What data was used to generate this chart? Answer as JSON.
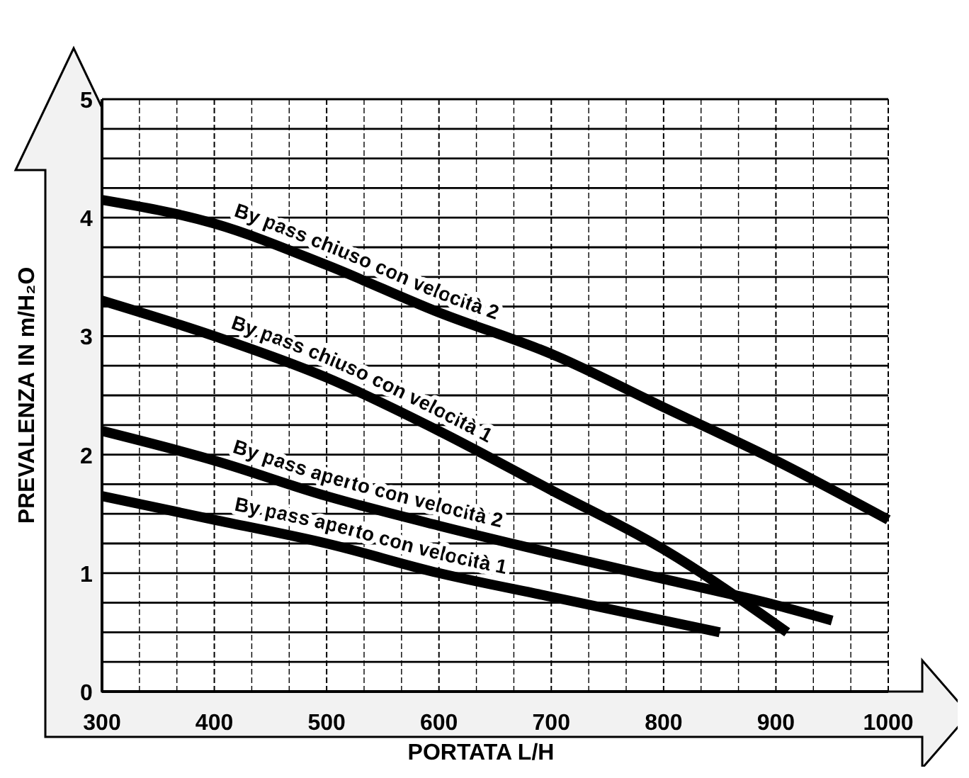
{
  "chart_data": {
    "type": "line",
    "xlabel": "PORTATA L/H",
    "ylabel": "PREVALENZA IN m/H₂O",
    "xlim": [
      300,
      1000
    ],
    "ylim": [
      0,
      5
    ],
    "xticks": [
      300,
      {
        "value": 333.33,
        "label": null
      },
      {
        "value": 366.67,
        "label": null
      },
      400,
      {
        "value": 433.33,
        "label": null
      },
      {
        "value": 466.67,
        "label": null
      },
      500,
      {
        "value": 533.33,
        "label": null
      },
      {
        "value": 566.67,
        "label": null
      },
      600,
      {
        "value": 633.33,
        "label": null
      },
      {
        "value": 666.67,
        "label": null
      },
      700,
      {
        "value": 733.33,
        "label": null
      },
      {
        "value": 766.67,
        "label": null
      },
      800,
      {
        "value": 833.33,
        "label": null
      },
      {
        "value": 866.67,
        "label": null
      },
      900,
      {
        "value": 933.33,
        "label": null
      },
      {
        "value": 966.67,
        "label": null
      },
      1000
    ],
    "yticks": [
      0,
      {
        "value": 0.25,
        "label": null
      },
      {
        "value": 0.5,
        "label": null
      },
      {
        "value": 0.75,
        "label": null
      },
      1,
      {
        "value": 1.25,
        "label": null
      },
      {
        "value": 1.5,
        "label": null
      },
      {
        "value": 1.75,
        "label": null
      },
      2,
      {
        "value": 2.25,
        "label": null
      },
      {
        "value": 2.5,
        "label": null
      },
      {
        "value": 2.75,
        "label": null
      },
      3,
      {
        "value": 3.25,
        "label": null
      },
      {
        "value": 3.5,
        "label": null
      },
      {
        "value": 3.75,
        "label": null
      },
      4,
      {
        "value": 4.25,
        "label": null
      },
      {
        "value": 4.5,
        "label": null
      },
      {
        "value": 4.75,
        "label": null
      },
      5
    ],
    "grid": true,
    "marker": "none",
    "line_style": "solid",
    "series": [
      {
        "name": "By pass chiuso con velocità 2",
        "color": "#000000",
        "x": [
          300,
          400,
          500,
          600,
          700,
          800,
          900,
          1000
        ],
        "values": [
          4.15,
          3.95,
          3.6,
          3.2,
          2.85,
          2.4,
          1.95,
          1.45
        ]
      },
      {
        "name": "By pass chiuso con velocità 1",
        "color": "#000000",
        "x": [
          300,
          400,
          500,
          600,
          700,
          800,
          910
        ],
        "values": [
          3.3,
          3.0,
          2.65,
          2.2,
          1.7,
          1.2,
          0.5
        ]
      },
      {
        "name": "By pass aperto con velocità 2",
        "color": "#000000",
        "x": [
          300,
          400,
          500,
          600,
          700,
          800,
          900,
          950
        ],
        "values": [
          2.2,
          1.95,
          1.65,
          1.4,
          1.17,
          0.95,
          0.73,
          0.6
        ]
      },
      {
        "name": "By pass aperto con velocità 1",
        "color": "#000000",
        "x": [
          300,
          400,
          500,
          600,
          700,
          850
        ],
        "values": [
          1.65,
          1.45,
          1.25,
          1.0,
          0.8,
          0.5
        ]
      }
    ]
  }
}
